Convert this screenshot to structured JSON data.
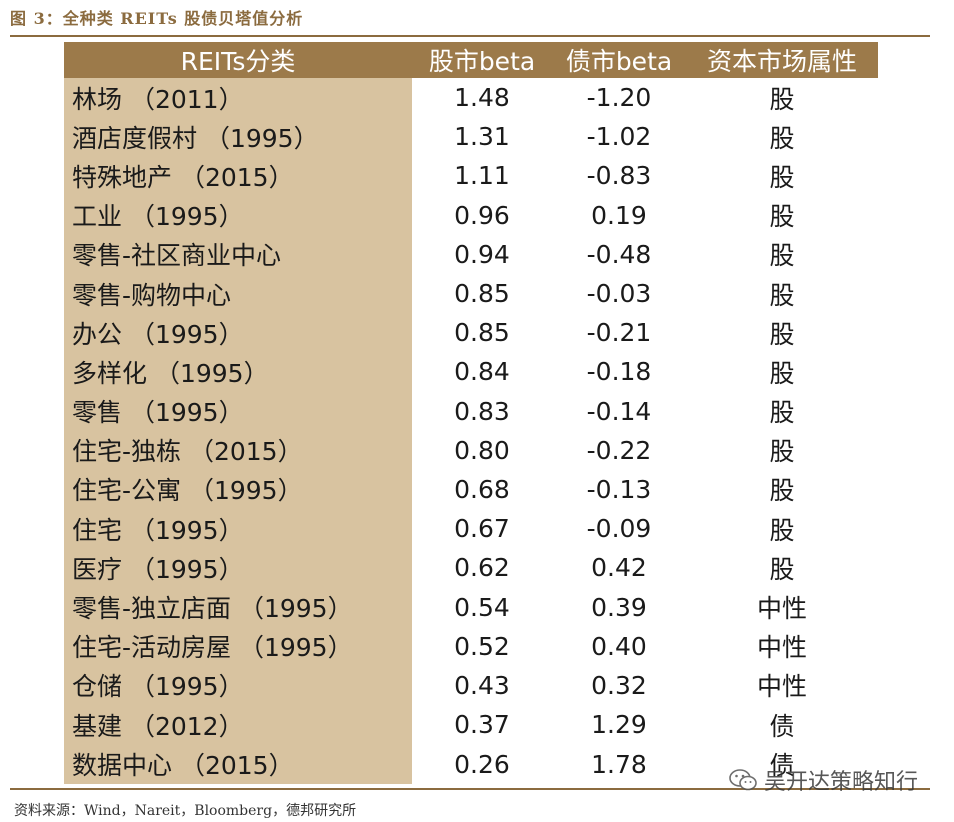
{
  "figure_title": "图 3：全种类 REITs 股债贝塔值分析",
  "table": {
    "headers": [
      "REITs分类",
      "股市beta",
      "债市beta",
      "资本市场属性"
    ],
    "rows": [
      [
        "林场 （2011）",
        "1.48",
        "-1.20",
        "股"
      ],
      [
        "酒店度假村 （1995）",
        "1.31",
        "-1.02",
        "股"
      ],
      [
        "特殊地产 （2015）",
        "1.11",
        "-0.83",
        "股"
      ],
      [
        "工业 （1995）",
        "0.96",
        "0.19",
        "股"
      ],
      [
        "零售-社区商业中心",
        "0.94",
        "-0.48",
        "股"
      ],
      [
        "零售-购物中心",
        "0.85",
        "-0.03",
        "股"
      ],
      [
        "办公 （1995）",
        "0.85",
        "-0.21",
        "股"
      ],
      [
        "多样化 （1995）",
        "0.84",
        "-0.18",
        "股"
      ],
      [
        "零售 （1995）",
        "0.83",
        "-0.14",
        "股"
      ],
      [
        "住宅-独栋 （2015）",
        "0.80",
        "-0.22",
        "股"
      ],
      [
        "住宅-公寓 （1995）",
        "0.68",
        "-0.13",
        "股"
      ],
      [
        "住宅 （1995）",
        "0.67",
        "-0.09",
        "股"
      ],
      [
        "医疗 （1995）",
        "0.62",
        "0.42",
        "股"
      ],
      [
        "零售-独立店面 （1995）",
        "0.54",
        "0.39",
        "中性"
      ],
      [
        "住宅-活动房屋 （1995）",
        "0.52",
        "0.40",
        "中性"
      ],
      [
        "仓储 （1995）",
        "0.43",
        "0.32",
        "中性"
      ],
      [
        "基建 （2012）",
        "0.37",
        "1.29",
        "债"
      ],
      [
        "数据中心 （2015）",
        "0.26",
        "1.78",
        "债"
      ]
    ]
  },
  "source": "资料来源：Wind，Nareit，Bloomberg，德邦研究所",
  "watermark": "吴开达策略知行",
  "watermark_icon": "wechat-icon",
  "colors": {
    "header_bg": "#9c7a4a",
    "category_bg": "#d8c3a0",
    "accent": "#8b6b3f"
  }
}
